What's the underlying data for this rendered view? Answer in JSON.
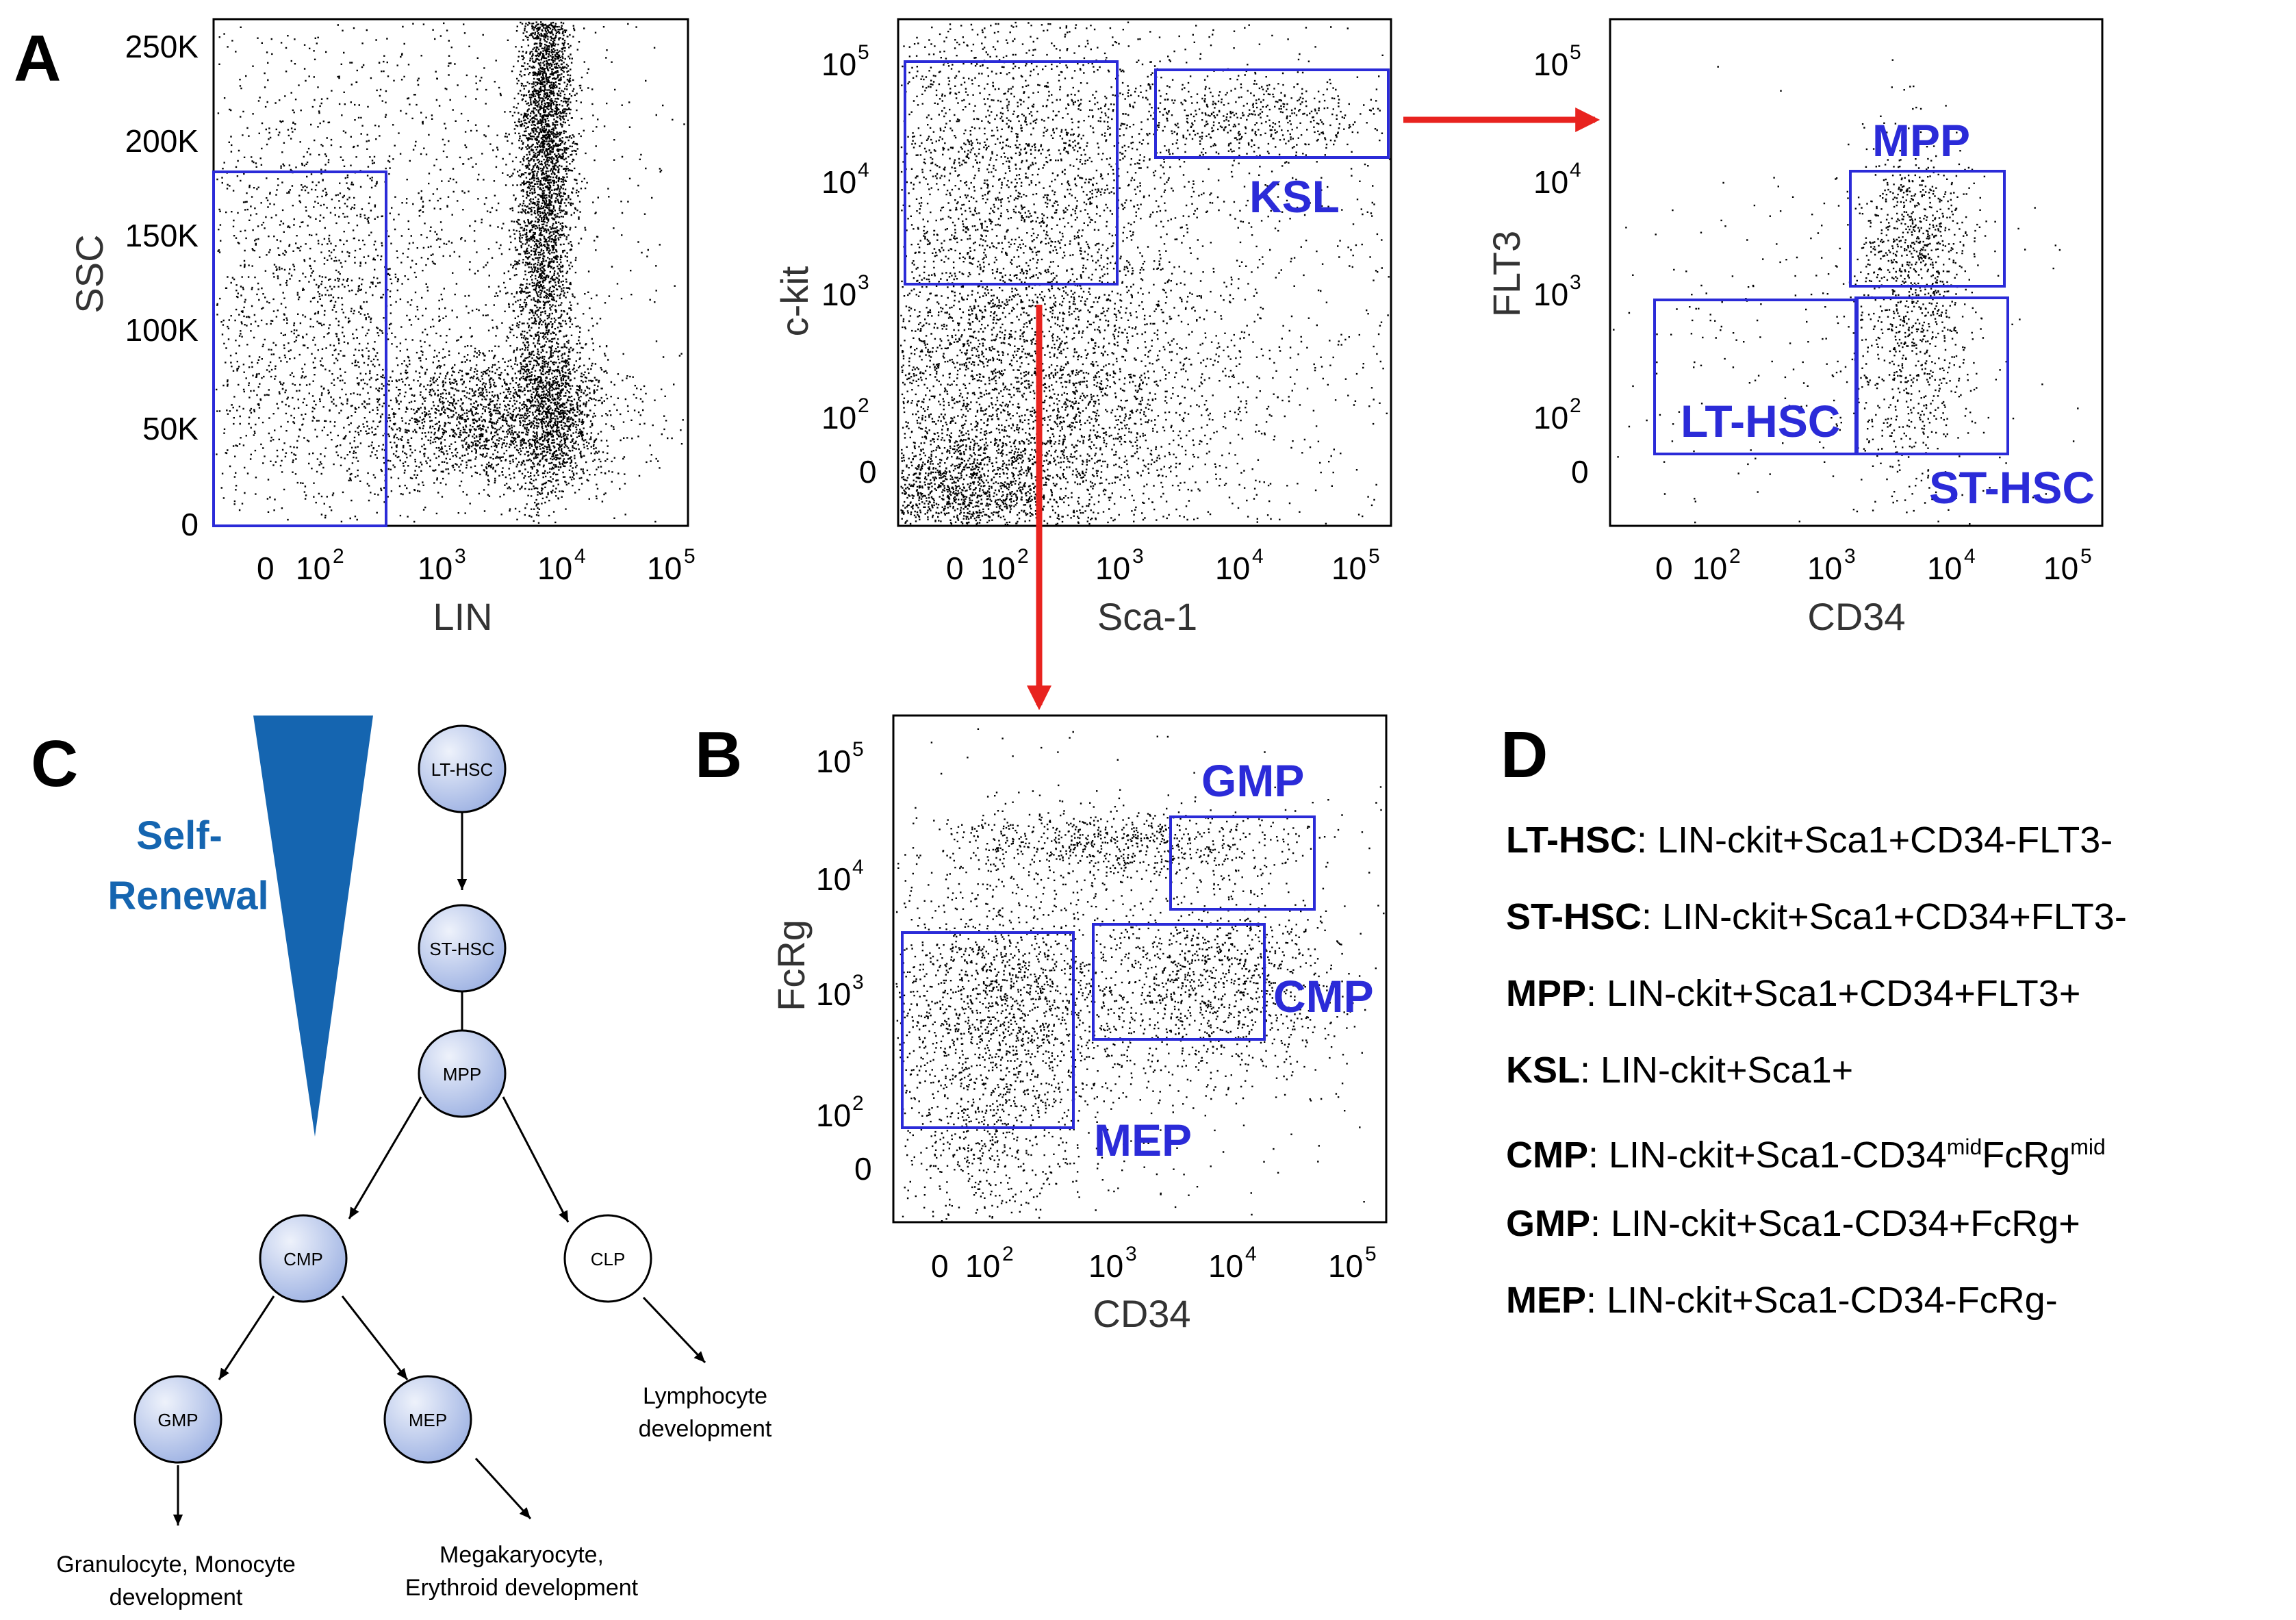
{
  "panels": {
    "A": "A",
    "B": "B",
    "C": "C",
    "D": "D"
  },
  "plots": {
    "lin_ssc": {
      "ylabel": "SSC",
      "xlabel": "LIN",
      "yticks": [
        "250K",
        "200K",
        "150K",
        "100K",
        "50K",
        "0"
      ],
      "xticks": [
        "0",
        "10^2",
        "10^3",
        "10^4",
        "10^5"
      ]
    },
    "sca_ckit": {
      "ylabel": "c-kit",
      "xlabel": "Sca-1",
      "yticks": [
        "10^5",
        "10^4",
        "10^3",
        "10^2",
        "0"
      ],
      "xticks": [
        "0",
        "10^2",
        "10^3",
        "10^4",
        "10^5"
      ],
      "gates": [
        "KSL"
      ]
    },
    "cd34_flt3": {
      "ylabel": "FLT3",
      "xlabel": "CD34",
      "yticks": [
        "10^5",
        "10^4",
        "10^3",
        "10^2",
        "0"
      ],
      "xticks": [
        "0",
        "10^2",
        "10^3",
        "10^4",
        "10^5"
      ],
      "gates": [
        "MPP",
        "LT-HSC",
        "ST-HSC"
      ]
    },
    "cd34_fcrg": {
      "ylabel": "FcRg",
      "xlabel": "CD34",
      "yticks": [
        "10^5",
        "10^4",
        "10^3",
        "10^2",
        "0"
      ],
      "xticks": [
        "0",
        "10^2",
        "10^3",
        "10^4",
        "10^5"
      ],
      "gates": [
        "GMP",
        "CMP",
        "MEP"
      ]
    }
  },
  "hierarchy": {
    "self_renewal": [
      "Self-",
      "Renewal"
    ],
    "nodes": [
      "LT-HSC",
      "ST-HSC",
      "MPP",
      "CMP",
      "CLP",
      "GMP",
      "MEP"
    ],
    "outcomes": {
      "lymph": [
        "Lymphocyte",
        "development"
      ],
      "granulo": [
        "Granulocyte, Monocyte",
        "development"
      ],
      "mega": [
        "Megakaryocyte,",
        "Erythroid development"
      ]
    }
  },
  "definitions": [
    {
      "term": "LT-HSC",
      "def": ": LIN-ckit+Sca1+CD34-FLT3-"
    },
    {
      "term": "ST-HSC",
      "def": ": LIN-ckit+Sca1+CD34+FLT3-"
    },
    {
      "term": "MPP",
      "def": ": LIN-ckit+Sca1+CD34+FLT3+"
    },
    {
      "term": "KSL",
      "def": ": LIN-ckit+Sca1+"
    },
    {
      "term": "CMP",
      "def": ": LIN-ckit+Sca1-CD34",
      "sup1": "mid",
      "def2": "FcRg",
      "sup2": "mid"
    },
    {
      "term": "GMP",
      "def": ": LIN-ckit+Sca1-CD34+FcRg+"
    },
    {
      "term": "MEP",
      "def": ": LIN-ckit+Sca1-CD34-FcRg-"
    }
  ],
  "colors": {
    "gate": "#2b2bd8",
    "arrow": "#e8231f",
    "triangle": "#1565b0",
    "node_fill": "#b9c8ec",
    "dots": "#000000"
  }
}
